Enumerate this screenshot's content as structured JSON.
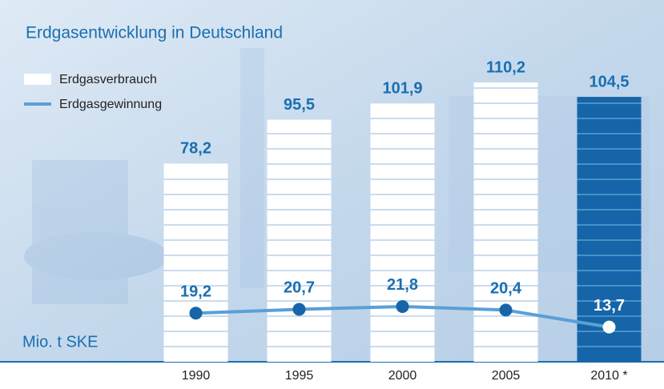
{
  "chart_data": {
    "type": "bar",
    "title": "Erdgasentwicklung in Deutschland",
    "unit_label": "Mio. t SKE",
    "categories": [
      "1990",
      "1995",
      "2000",
      "2005",
      "2010 *"
    ],
    "ylim": [
      0,
      120
    ],
    "series": [
      {
        "name": "Erdgasverbrauch",
        "type": "bar",
        "colors": [
          "#ffffff",
          "#ffffff",
          "#ffffff",
          "#ffffff",
          "#1565a8"
        ],
        "values": [
          78.2,
          95.5,
          101.9,
          110.2,
          104.5
        ],
        "value_labels": [
          "78,2",
          "95,5",
          "101,9",
          "110,2",
          "104,5"
        ]
      },
      {
        "name": "Erdgasgewinnung",
        "type": "line",
        "color": "#5b9fd6",
        "marker_colors": [
          "#1565a8",
          "#1565a8",
          "#1565a8",
          "#1565a8",
          "#ffffff"
        ],
        "values": [
          19.2,
          20.7,
          21.8,
          20.4,
          13.7
        ],
        "value_labels": [
          "19,2",
          "20,7",
          "21,8",
          "20,4",
          "13,7"
        ]
      }
    ]
  }
}
